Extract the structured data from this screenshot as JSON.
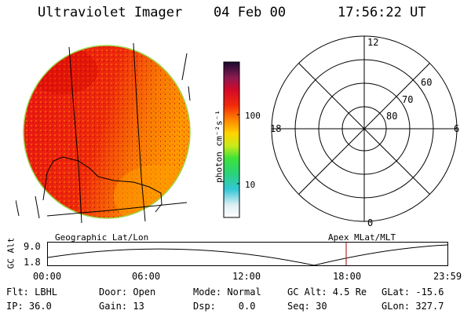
{
  "header": {
    "instrument": "Ultraviolet Imager",
    "date": "04 Feb 00",
    "time": "17:56:22 UT"
  },
  "colorbar": {
    "label": "photon cm⁻²s⁻¹",
    "ticks": [
      "100",
      "10"
    ]
  },
  "polar": {
    "mlt_labels": {
      "top": "12",
      "left": "18",
      "right": "6",
      "bottom": "0"
    },
    "lat_labels": [
      "60",
      "70",
      "80"
    ]
  },
  "images": {
    "left_label": "Geographic Lat/Lon",
    "right_label": "Apex MLat/MLT"
  },
  "orbit": {
    "axis_label": "GC Alt",
    "y_ticks": [
      "9.0",
      "1.8"
    ],
    "x_ticks": [
      "00:00",
      "06:00",
      "12:00",
      "18:00",
      "23:59"
    ],
    "marker_color": "#b03030"
  },
  "status": {
    "filter": "Flt: LBHL",
    "door": "Door: Open",
    "mode": "Mode: Normal",
    "gc_alt": "GC Alt: 4.5 Re",
    "glat": "GLat: -15.6",
    "ip": "IP: 36.0",
    "gain": "Gain: 13",
    "dsp": "Dsp:    0.0",
    "seq": "Seq: 30",
    "glon": "GLon: 327.7"
  }
}
